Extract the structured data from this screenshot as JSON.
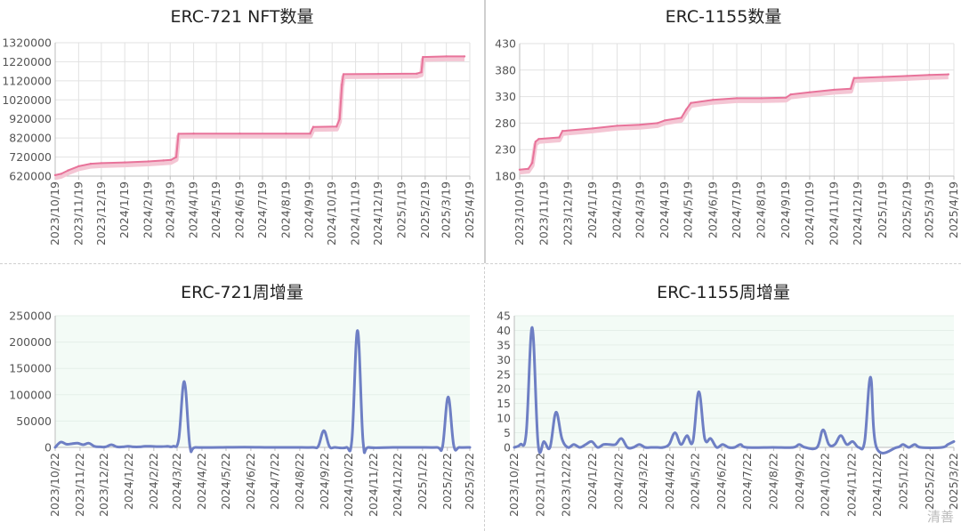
{
  "watermark": "清善",
  "chart_data": [
    {
      "id": "erc721-total",
      "type": "line",
      "title": "ERC-721 NFT数量",
      "ylim": [
        620000,
        1320000
      ],
      "yticks": [
        620000,
        720000,
        820000,
        920000,
        1020000,
        1120000,
        1220000,
        1320000
      ],
      "xlim": [
        "2023-10-19",
        "2025-04-19"
      ],
      "xticks": [
        "2023/10/19",
        "2023/11/19",
        "2023/12/19",
        "2024/1/19",
        "2024/2/19",
        "2024/3/19",
        "2024/4/19",
        "2024/5/19",
        "2024/6/19",
        "2024/7/19",
        "2024/8/19",
        "2024/9/19",
        "2024/10/19",
        "2024/11/19",
        "2024/12/19",
        "2025/1/19",
        "2025/2/19",
        "2025/3/19",
        "2025/4/19"
      ],
      "grid": true,
      "colors": {
        "line": "#e8739a",
        "shadow": "#f4c6d4"
      },
      "series": [
        {
          "points": [
            [
              "2023-10-19",
              625000
            ],
            [
              "2023-10-27",
              632000
            ],
            [
              "2023-11-05",
              650000
            ],
            [
              "2023-11-19",
              672000
            ],
            [
              "2023-12-05",
              685000
            ],
            [
              "2023-12-19",
              688000
            ],
            [
              "2024-01-19",
              692000
            ],
            [
              "2024-02-19",
              697000
            ],
            [
              "2024-03-10",
              702000
            ],
            [
              "2024-03-20",
              705000
            ],
            [
              "2024-03-27",
              720000
            ],
            [
              "2024-03-30",
              842000
            ],
            [
              "2024-04-19",
              843000
            ],
            [
              "2024-06-19",
              843000
            ],
            [
              "2024-08-19",
              843000
            ],
            [
              "2024-09-20",
              843000
            ],
            [
              "2024-09-24",
              878000
            ],
            [
              "2024-10-25",
              880000
            ],
            [
              "2024-10-29",
              920000
            ],
            [
              "2024-11-01",
              1100000
            ],
            [
              "2024-11-03",
              1155000
            ],
            [
              "2024-12-19",
              1156000
            ],
            [
              "2025-02-08",
              1158000
            ],
            [
              "2025-02-14",
              1165000
            ],
            [
              "2025-02-16",
              1245000
            ],
            [
              "2025-03-19",
              1248000
            ],
            [
              "2025-04-12",
              1248000
            ]
          ]
        }
      ]
    },
    {
      "id": "erc1155-total",
      "type": "line",
      "title": "ERC-1155数量",
      "ylim": [
        180,
        430
      ],
      "yticks": [
        180,
        230,
        280,
        330,
        380,
        430
      ],
      "xlim": [
        "2023-10-19",
        "2025-04-19"
      ],
      "xticks": [
        "2023/10/19",
        "2023/11/19",
        "2023/12/19",
        "2024/1/19",
        "2024/2/19",
        "2024/3/19",
        "2024/4/19",
        "2024/5/19",
        "2024/6/19",
        "2024/7/19",
        "2024/8/19",
        "2024/9/19",
        "2024/10/19",
        "2024/11/19",
        "2024/12/19",
        "2025/1/19",
        "2025/2/19",
        "2025/3/19",
        "2025/4/19"
      ],
      "grid": true,
      "colors": {
        "line": "#e8739a",
        "shadow": "#f4c6d4"
      },
      "series": [
        {
          "points": [
            [
              "2023-10-19",
              192
            ],
            [
              "2023-10-30",
              194
            ],
            [
              "2023-11-04",
              205
            ],
            [
              "2023-11-08",
              245
            ],
            [
              "2023-11-12",
              250
            ],
            [
              "2023-12-08",
              253
            ],
            [
              "2023-12-12",
              265
            ],
            [
              "2024-01-19",
              270
            ],
            [
              "2024-02-19",
              275
            ],
            [
              "2024-03-19",
              277
            ],
            [
              "2024-04-10",
              280
            ],
            [
              "2024-04-19",
              285
            ],
            [
              "2024-05-10",
              290
            ],
            [
              "2024-05-16",
              305
            ],
            [
              "2024-05-22",
              318
            ],
            [
              "2024-06-19",
              324
            ],
            [
              "2024-07-19",
              327
            ],
            [
              "2024-08-19",
              327
            ],
            [
              "2024-09-19",
              328
            ],
            [
              "2024-09-25",
              334
            ],
            [
              "2024-10-19",
              338
            ],
            [
              "2024-11-19",
              343
            ],
            [
              "2024-12-10",
              345
            ],
            [
              "2024-12-14",
              365
            ],
            [
              "2025-01-19",
              367
            ],
            [
              "2025-02-19",
              369
            ],
            [
              "2025-03-19",
              371
            ],
            [
              "2025-04-12",
              372
            ]
          ]
        }
      ]
    },
    {
      "id": "erc721-weekly",
      "type": "area",
      "title": "ERC-721周增量",
      "ylim": [
        0,
        250000
      ],
      "yticks": [
        0,
        50000,
        100000,
        150000,
        200000,
        250000
      ],
      "xlim": [
        "2023-10-22",
        "2025-03-22"
      ],
      "xticks": [
        "2023/10/22",
        "2023/11/22",
        "2023/12/22",
        "2024/1/22",
        "2024/2/22",
        "2024/3/22",
        "2024/4/22",
        "2024/5/22",
        "2024/6/22",
        "2024/7/22",
        "2024/8/22",
        "2024/9/22",
        "2024/10/22",
        "2024/11/22",
        "2024/12/22",
        "2025/1/22",
        "2025/2/22",
        "2025/3/22"
      ],
      "grid": true,
      "colors": {
        "line": "#6e7fc4",
        "area": "#f3fbf6"
      },
      "series": [
        {
          "points": [
            [
              "2023-10-22",
              0
            ],
            [
              "2023-10-29",
              10000
            ],
            [
              "2023-11-05",
              6000
            ],
            [
              "2023-11-12",
              7000
            ],
            [
              "2023-11-19",
              8000
            ],
            [
              "2023-11-26",
              5000
            ],
            [
              "2023-12-03",
              8000
            ],
            [
              "2023-12-10",
              2000
            ],
            [
              "2023-12-17",
              1000
            ],
            [
              "2023-12-24",
              1000
            ],
            [
              "2023-12-31",
              5000
            ],
            [
              "2024-01-07",
              1000
            ],
            [
              "2024-01-14",
              1000
            ],
            [
              "2024-01-21",
              2000
            ],
            [
              "2024-01-28",
              1000
            ],
            [
              "2024-02-04",
              1000
            ],
            [
              "2024-02-11",
              2000
            ],
            [
              "2024-02-18",
              2000
            ],
            [
              "2024-02-25",
              1500
            ],
            [
              "2024-03-03",
              1500
            ],
            [
              "2024-03-10",
              2000
            ],
            [
              "2024-03-17",
              2000
            ],
            [
              "2024-03-24",
              15000
            ],
            [
              "2024-03-31",
              125000
            ],
            [
              "2024-04-07",
              2000
            ],
            [
              "2024-04-14",
              0
            ],
            [
              "2024-05-14",
              0
            ],
            [
              "2024-06-14",
              500
            ],
            [
              "2024-07-14",
              0
            ],
            [
              "2024-08-14",
              0
            ],
            [
              "2024-09-07",
              0
            ],
            [
              "2024-09-14",
              2000
            ],
            [
              "2024-09-21",
              32000
            ],
            [
              "2024-09-28",
              1500
            ],
            [
              "2024-10-05",
              0
            ],
            [
              "2024-10-19",
              0
            ],
            [
              "2024-10-26",
              15000
            ],
            [
              "2024-11-02",
              222000
            ],
            [
              "2024-11-09",
              10000
            ],
            [
              "2024-11-16",
              0
            ],
            [
              "2024-12-16",
              0
            ],
            [
              "2025-01-16",
              0
            ],
            [
              "2025-02-09",
              0
            ],
            [
              "2025-02-16",
              2000
            ],
            [
              "2025-02-23",
              96000
            ],
            [
              "2025-03-02",
              3000
            ],
            [
              "2025-03-09",
              0
            ],
            [
              "2025-03-22",
              0
            ]
          ]
        }
      ]
    },
    {
      "id": "erc1155-weekly",
      "type": "area",
      "title": "ERC-1155周增量",
      "ylim": [
        0,
        45
      ],
      "yticks": [
        0,
        5,
        10,
        15,
        20,
        25,
        30,
        35,
        40,
        45
      ],
      "xlim": [
        "2023-10-22",
        "2025-03-22"
      ],
      "xticks": [
        "2023/10/22",
        "2023/11/22",
        "2023/12/22",
        "2024/1/22",
        "2024/2/22",
        "2024/3/22",
        "2024/4/22",
        "2024/5/22",
        "2024/6/22",
        "2024/7/22",
        "2024/8/22",
        "2024/9/22",
        "2024/10/22",
        "2024/11/22",
        "2024/12/22",
        "2025/1/22",
        "2025/2/22",
        "2025/3/22"
      ],
      "grid": true,
      "colors": {
        "line": "#6e7fc4",
        "area": "#f3fbf6"
      },
      "series": [
        {
          "points": [
            [
              "2023-10-22",
              0
            ],
            [
              "2023-10-29",
              1
            ],
            [
              "2023-11-05",
              5
            ],
            [
              "2023-11-12",
              41
            ],
            [
              "2023-11-19",
              1
            ],
            [
              "2023-11-26",
              2
            ],
            [
              "2023-12-03",
              0
            ],
            [
              "2023-12-10",
              12
            ],
            [
              "2023-12-17",
              3
            ],
            [
              "2023-12-24",
              0
            ],
            [
              "2023-12-31",
              1
            ],
            [
              "2024-01-07",
              0
            ],
            [
              "2024-01-14",
              1
            ],
            [
              "2024-01-21",
              2
            ],
            [
              "2024-01-28",
              0
            ],
            [
              "2024-02-04",
              1
            ],
            [
              "2024-02-11",
              1
            ],
            [
              "2024-02-18",
              1
            ],
            [
              "2024-02-25",
              3
            ],
            [
              "2024-03-03",
              0
            ],
            [
              "2024-03-10",
              0
            ],
            [
              "2024-03-17",
              1
            ],
            [
              "2024-03-24",
              0
            ],
            [
              "2024-03-31",
              0
            ],
            [
              "2024-04-07",
              0
            ],
            [
              "2024-04-14",
              0
            ],
            [
              "2024-04-21",
              1
            ],
            [
              "2024-04-28",
              5
            ],
            [
              "2024-05-05",
              1
            ],
            [
              "2024-05-12",
              4
            ],
            [
              "2024-05-19",
              2
            ],
            [
              "2024-05-26",
              19
            ],
            [
              "2024-06-02",
              3
            ],
            [
              "2024-06-09",
              3
            ],
            [
              "2024-06-16",
              0
            ],
            [
              "2024-06-23",
              1
            ],
            [
              "2024-06-30",
              0
            ],
            [
              "2024-07-07",
              0
            ],
            [
              "2024-07-14",
              1
            ],
            [
              "2024-07-21",
              0
            ],
            [
              "2024-08-21",
              0
            ],
            [
              "2024-09-14",
              0
            ],
            [
              "2024-09-21",
              1
            ],
            [
              "2024-09-28",
              0
            ],
            [
              "2024-10-12",
              0
            ],
            [
              "2024-10-19",
              6
            ],
            [
              "2024-10-26",
              1
            ],
            [
              "2024-11-02",
              1
            ],
            [
              "2024-11-09",
              4
            ],
            [
              "2024-11-16",
              1
            ],
            [
              "2024-11-23",
              2
            ],
            [
              "2024-11-30",
              0
            ],
            [
              "2024-12-07",
              2
            ],
            [
              "2024-12-14",
              24
            ],
            [
              "2024-12-21",
              0
            ],
            [
              "2025-01-14",
              0
            ],
            [
              "2025-01-21",
              1
            ],
            [
              "2025-01-28",
              0
            ],
            [
              "2025-02-04",
              1
            ],
            [
              "2025-02-11",
              0
            ],
            [
              "2025-03-08",
              0
            ],
            [
              "2025-03-15",
              1
            ],
            [
              "2025-03-22",
              2
            ]
          ]
        }
      ]
    }
  ]
}
